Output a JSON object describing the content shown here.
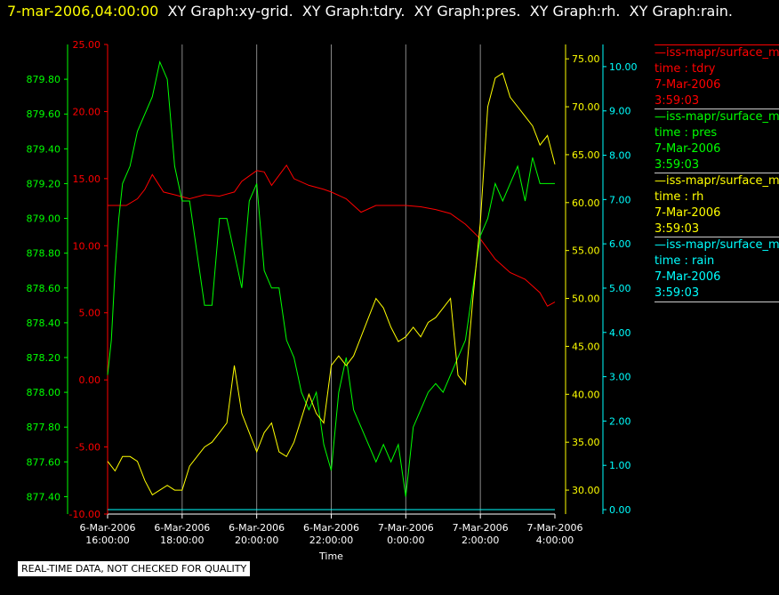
{
  "header": {
    "timestamp": "7-mar-2006,04:00:00",
    "titles": [
      "XY Graph:xy-grid.",
      "XY Graph:tdry.",
      "XY Graph:pres.",
      "XY Graph:rh.",
      "XY Graph:rain."
    ]
  },
  "colors": {
    "tdry": "#ff0000",
    "pres": "#00ff00",
    "rh": "#ffff00",
    "rain": "#00ffff",
    "grid": "#ffffff"
  },
  "legend": [
    {
      "id": "tdry",
      "source": "—iss-mapr/surface_m",
      "var": "time : tdry",
      "date": "7-Mar-2006",
      "time": "3:59:03"
    },
    {
      "id": "pres",
      "source": "—iss-mapr/surface_m",
      "var": "time : pres",
      "date": "7-Mar-2006",
      "time": "3:59:03"
    },
    {
      "id": "rh",
      "source": "—iss-mapr/surface_m",
      "var": "time : rh",
      "date": "7-Mar-2006",
      "time": "3:59:03"
    },
    {
      "id": "rain",
      "source": "—iss-mapr/surface_m",
      "var": "time : rain",
      "date": "7-Mar-2006",
      "time": "3:59:03"
    }
  ],
  "disclaimer": "REAL-TIME DATA, NOT CHECKED FOR QUALITY",
  "chart_data": {
    "type": "line",
    "xlabel": "Time",
    "x_ticks": [
      {
        "hours": 0,
        "date": "6-Mar-2006",
        "time": "16:00:00"
      },
      {
        "hours": 2,
        "date": "6-Mar-2006",
        "time": "18:00:00"
      },
      {
        "hours": 4,
        "date": "6-Mar-2006",
        "time": "20:00:00"
      },
      {
        "hours": 6,
        "date": "6-Mar-2006",
        "time": "22:00:00"
      },
      {
        "hours": 8,
        "date": "7-Mar-2006",
        "time": "0:00:00"
      },
      {
        "hours": 10,
        "date": "7-Mar-2006",
        "time": "2:00:00"
      },
      {
        "hours": 12,
        "date": "7-Mar-2006",
        "time": "4:00:00"
      }
    ],
    "xlim": [
      0,
      12
    ],
    "grid": "vertical",
    "axes": {
      "pres": {
        "ticks": [
          "877.40",
          "877.60",
          "877.80",
          "878.00",
          "878.20",
          "878.40",
          "878.60",
          "878.80",
          "879.00",
          "879.20",
          "879.40",
          "879.60",
          "879.80"
        ],
        "lim": [
          877.3,
          880.0
        ]
      },
      "tdry": {
        "ticks": [
          "-10.00",
          "-5.00",
          "0.00",
          "5.00",
          "10.00",
          "15.00",
          "20.00",
          "25.00"
        ],
        "lim": [
          -10,
          25
        ]
      },
      "rh": {
        "ticks": [
          "30.00",
          "35.00",
          "40.00",
          "45.00",
          "50.00",
          "55.00",
          "60.00",
          "65.00",
          "70.00",
          "75.00"
        ],
        "lim": [
          27.5,
          76.5
        ]
      },
      "rain": {
        "ticks": [
          "0.00",
          "1.00",
          "2.00",
          "3.00",
          "4.00",
          "5.00",
          "6.00",
          "7.00",
          "8.00",
          "9.00",
          "10.00"
        ],
        "lim": [
          -0.1,
          10.5
        ]
      }
    },
    "series": [
      {
        "id": "tdry",
        "x": [
          0,
          0.2,
          0.5,
          0.8,
          1.0,
          1.2,
          1.5,
          1.8,
          2.2,
          2.6,
          3.0,
          3.4,
          3.6,
          3.8,
          4.0,
          4.2,
          4.4,
          4.8,
          5.0,
          5.4,
          5.8,
          6.0,
          6.4,
          6.8,
          7.2,
          7.6,
          8.0,
          8.4,
          8.8,
          9.2,
          9.6,
          10.0,
          10.4,
          10.8,
          11.2,
          11.6,
          11.8,
          12.0
        ],
        "values": [
          13.0,
          13.0,
          13.0,
          13.5,
          14.2,
          15.3,
          14.0,
          13.8,
          13.5,
          13.8,
          13.7,
          14.0,
          14.8,
          15.2,
          15.6,
          15.5,
          14.5,
          16.0,
          15.0,
          14.5,
          14.2,
          14.0,
          13.5,
          12.5,
          13.0,
          13.0,
          13.0,
          12.9,
          12.7,
          12.4,
          11.6,
          10.5,
          9.0,
          8.0,
          7.5,
          6.5,
          5.5,
          5.8
        ]
      },
      {
        "id": "pres",
        "x": [
          0,
          0.1,
          0.2,
          0.3,
          0.4,
          0.6,
          0.8,
          1.0,
          1.2,
          1.4,
          1.6,
          1.8,
          2.0,
          2.2,
          2.4,
          2.6,
          2.8,
          3.0,
          3.2,
          3.4,
          3.6,
          3.8,
          4.0,
          4.2,
          4.4,
          4.6,
          4.8,
          5.0,
          5.2,
          5.4,
          5.6,
          5.8,
          6.0,
          6.2,
          6.4,
          6.6,
          6.8,
          7.0,
          7.2,
          7.4,
          7.6,
          7.8,
          8.0,
          8.2,
          8.4,
          8.6,
          8.8,
          9.0,
          9.2,
          9.4,
          9.6,
          9.8,
          10.0,
          10.2,
          10.4,
          10.6,
          10.8,
          11.0,
          11.2,
          11.4,
          11.6,
          11.8,
          12.0
        ],
        "values": [
          878.1,
          878.3,
          878.7,
          879.0,
          879.2,
          879.3,
          879.5,
          879.6,
          879.7,
          879.9,
          879.8,
          879.3,
          879.1,
          879.1,
          878.8,
          878.5,
          878.5,
          879.0,
          879.0,
          878.8,
          878.6,
          879.1,
          879.2,
          878.7,
          878.6,
          878.6,
          878.3,
          878.2,
          878.0,
          877.9,
          878.0,
          877.7,
          877.55,
          878.0,
          878.2,
          877.9,
          877.8,
          877.7,
          877.6,
          877.7,
          877.6,
          877.7,
          877.4,
          877.8,
          877.9,
          878.0,
          878.05,
          878.0,
          878.1,
          878.2,
          878.3,
          878.6,
          878.9,
          879.0,
          879.2,
          879.1,
          879.2,
          879.3,
          879.1,
          879.35,
          879.2,
          879.2,
          879.2
        ]
      },
      {
        "id": "rh",
        "x": [
          0,
          0.2,
          0.4,
          0.6,
          0.8,
          1.0,
          1.2,
          1.4,
          1.6,
          1.8,
          2.0,
          2.2,
          2.4,
          2.6,
          2.8,
          3.0,
          3.2,
          3.4,
          3.6,
          3.8,
          4.0,
          4.2,
          4.4,
          4.6,
          4.8,
          5.0,
          5.2,
          5.4,
          5.6,
          5.8,
          6.0,
          6.2,
          6.4,
          6.6,
          6.8,
          7.0,
          7.2,
          7.4,
          7.6,
          7.8,
          8.0,
          8.2,
          8.4,
          8.6,
          8.8,
          9.0,
          9.2,
          9.4,
          9.6,
          9.8,
          10.0,
          10.2,
          10.4,
          10.6,
          10.8,
          11.0,
          11.2,
          11.4,
          11.6,
          11.8,
          12.0
        ],
        "values": [
          33.0,
          32.0,
          33.5,
          33.5,
          33.0,
          31.0,
          29.5,
          30.0,
          30.5,
          30.0,
          30.0,
          32.5,
          33.5,
          34.5,
          35.0,
          36.0,
          37.0,
          43.0,
          38.0,
          36.0,
          34.0,
          36.0,
          37.0,
          34.0,
          33.5,
          35.0,
          37.5,
          40.0,
          38.0,
          37.0,
          43.0,
          44.0,
          43.0,
          44.0,
          46.0,
          48.0,
          50.0,
          49.0,
          47.0,
          45.5,
          46.0,
          47.0,
          46.0,
          47.5,
          48.0,
          49.0,
          50.0,
          42.0,
          41.0,
          50.0,
          58.0,
          70.0,
          73.0,
          73.5,
          71.0,
          70.0,
          69.0,
          68.0,
          66.0,
          67.0,
          64.0
        ]
      },
      {
        "id": "rain",
        "x": [
          0,
          12
        ],
        "values": [
          0,
          0
        ]
      }
    ]
  }
}
